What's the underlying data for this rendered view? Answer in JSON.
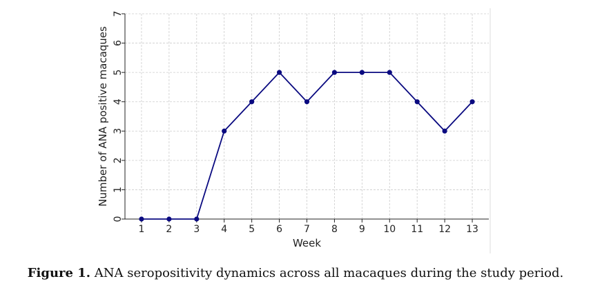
{
  "chart_data": {
    "type": "line",
    "x": [
      1,
      2,
      3,
      4,
      5,
      6,
      7,
      8,
      9,
      10,
      11,
      12,
      13
    ],
    "series": [
      {
        "values": [
          0,
          0,
          0,
          3,
          4,
          5,
          4,
          5,
          5,
          5,
          4,
          3,
          4
        ]
      }
    ],
    "xlabel": "Week",
    "ylabel": "Number of ANA positive macaques",
    "xticks": [
      "1",
      "2",
      "3",
      "4",
      "5",
      "6",
      "7",
      "8",
      "9",
      "10",
      "11",
      "12",
      "13"
    ],
    "yticks": [
      "0",
      "1",
      "2",
      "3",
      "4",
      "5",
      "6",
      "7"
    ],
    "xlim": [
      0.4,
      13.6
    ],
    "ylim": [
      0,
      7
    ],
    "grid": true,
    "line_color": "#0a0a80",
    "marker": "circle"
  },
  "caption": {
    "label": "Figure 1.",
    "text": " ANA seropositivity dynamics across all macaques during the study period."
  }
}
